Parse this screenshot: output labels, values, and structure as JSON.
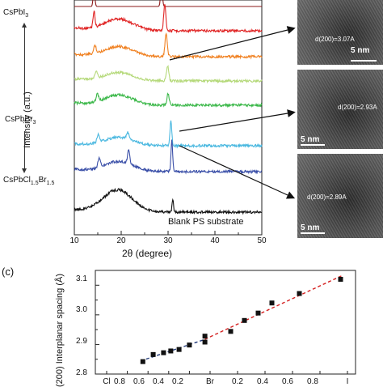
{
  "labels": {
    "cspbi3": "CsPbI",
    "cspbi3_sub": "3",
    "cspbbr3": "CsPbBr",
    "cspbbr3_sub": "3",
    "cspbcl": "CsPbCl",
    "cspbcl_sub1": "1.5",
    "cspbcl_br": "Br",
    "cspbcl_sub2": "1.5",
    "panel_c": "(c)"
  },
  "micrographs": [
    {
      "spacing": "d(200)=3.07A",
      "scalebar": "5 nm"
    },
    {
      "spacing": "d(200)=2.93A",
      "scalebar": "5 nm"
    },
    {
      "spacing": "d(200)=2.89A",
      "scalebar": "5 nm"
    }
  ],
  "chart_data": [
    {
      "type": "line",
      "title": "",
      "xlabel": "2θ (degree)",
      "ylabel": "Intensity (a.u.)",
      "xlim": [
        10,
        50
      ],
      "xticks": [
        "10",
        "20",
        "30",
        "40",
        "50"
      ],
      "annotation": "Blank PS substrate",
      "series": [
        {
          "color": "#8b1a1a"
        },
        {
          "color": "#e02424"
        },
        {
          "color": "#f08020"
        },
        {
          "color": "#b5d97a"
        },
        {
          "color": "#3cb84a"
        },
        {
          "color": "#4ab8e0"
        },
        {
          "color": "#3a4fa8"
        },
        {
          "name": "Blank PS substrate",
          "color": "#111111"
        }
      ]
    },
    {
      "type": "scatter",
      "title": "",
      "xlabel": "",
      "ylabel": "(200) Interplanar spacing (Å)",
      "ylim": [
        2.8,
        3.15
      ],
      "yticks": [
        "2.8",
        "2.9",
        "3.0",
        "3.1"
      ],
      "xticks": [
        "Cl",
        "0.8",
        "0.6",
        "0.4",
        "0.2",
        "Br",
        "0.2",
        "0.4",
        "0.6",
        "0.8",
        "I"
      ],
      "x": [
        -0.65,
        -0.55,
        -0.45,
        -0.38,
        -0.3,
        -0.2,
        -0.05,
        -0.05,
        0.15,
        0.25,
        0.35,
        0.45,
        0.65,
        0.95
      ],
      "y": [
        2.842,
        2.866,
        2.872,
        2.878,
        2.883,
        2.898,
        2.908,
        2.928,
        2.944,
        2.981,
        3.006,
        3.04,
        3.072,
        3.12
      ],
      "fit_lines": [
        {
          "color": "#223a7a",
          "style": "dashed",
          "x": [
            -0.67,
            -0.05
          ]
        },
        {
          "color": "#d42020",
          "style": "dashed",
          "x": [
            -0.05,
            0.97
          ]
        }
      ]
    }
  ]
}
